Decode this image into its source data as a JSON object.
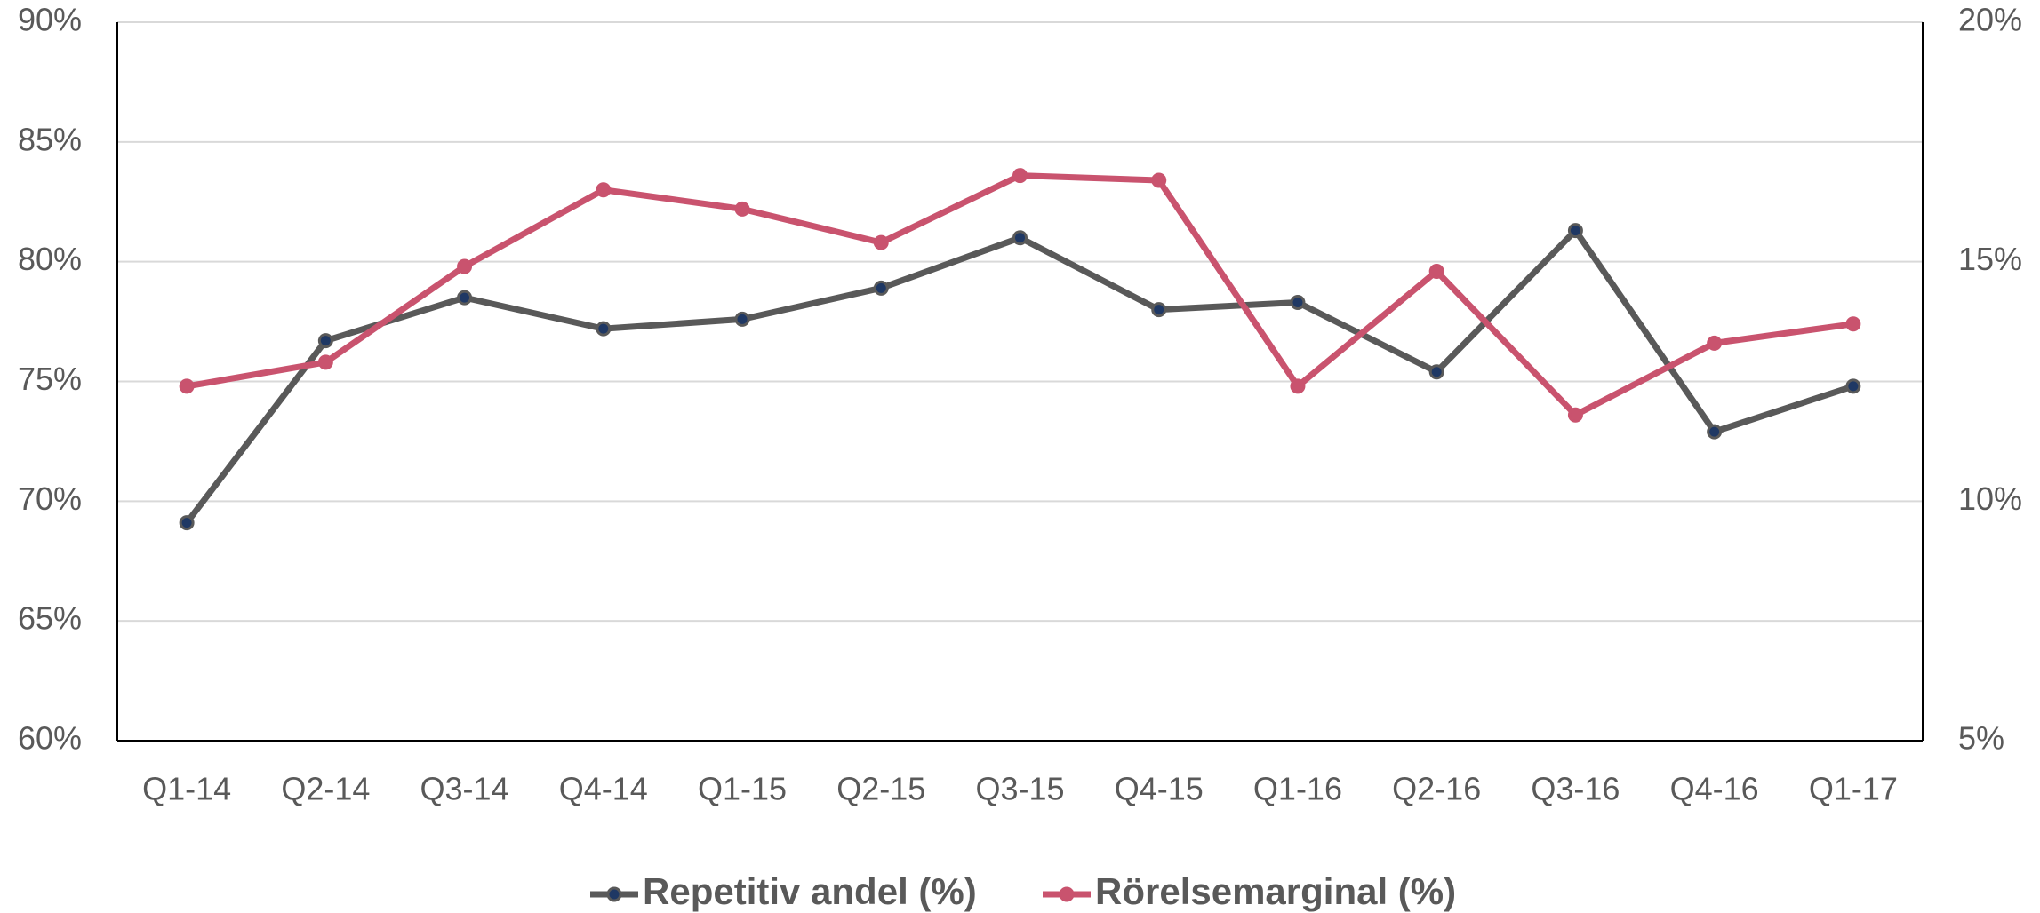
{
  "chart_data": {
    "type": "line",
    "categories": [
      "Q1-14",
      "Q2-14",
      "Q3-14",
      "Q4-14",
      "Q1-15",
      "Q2-15",
      "Q3-15",
      "Q4-15",
      "Q1-16",
      "Q2-16",
      "Q3-16",
      "Q4-16",
      "Q1-17"
    ],
    "series": [
      {
        "name": "Repetitiv andel (%)",
        "color": "#595959",
        "marker_color": "#1f3864",
        "values": [
          69.1,
          76.7,
          78.5,
          77.2,
          77.6,
          78.9,
          81.0,
          78.0,
          78.3,
          75.4,
          81.3,
          72.9,
          74.8
        ]
      },
      {
        "name": "Rörelsemarginal (%)",
        "color": "#c9536e",
        "marker_color": "#c9536e",
        "axis": "y2",
        "values": [
          12.4,
          12.9,
          14.9,
          16.5,
          16.1,
          15.4,
          16.8,
          16.7,
          12.4,
          14.8,
          11.8,
          13.3,
          13.7
        ]
      }
    ],
    "ylim": [
      60,
      90
    ],
    "yticks": [
      {
        "value": 60,
        "label": "60%"
      },
      {
        "value": 65,
        "label": "65%"
      },
      {
        "value": 70,
        "label": "70%"
      },
      {
        "value": 75,
        "label": "75%"
      },
      {
        "value": 80,
        "label": "80%"
      },
      {
        "value": 85,
        "label": "85%"
      },
      {
        "value": 90,
        "label": "90%"
      }
    ],
    "y2lim": [
      5,
      20
    ],
    "y2ticks": [
      {
        "value": 5,
        "label": "5%"
      },
      {
        "value": 10,
        "label": "10%"
      },
      {
        "value": 15,
        "label": "15%"
      },
      {
        "value": 20,
        "label": "20%"
      }
    ],
    "grid": true,
    "legend": "bottom"
  }
}
